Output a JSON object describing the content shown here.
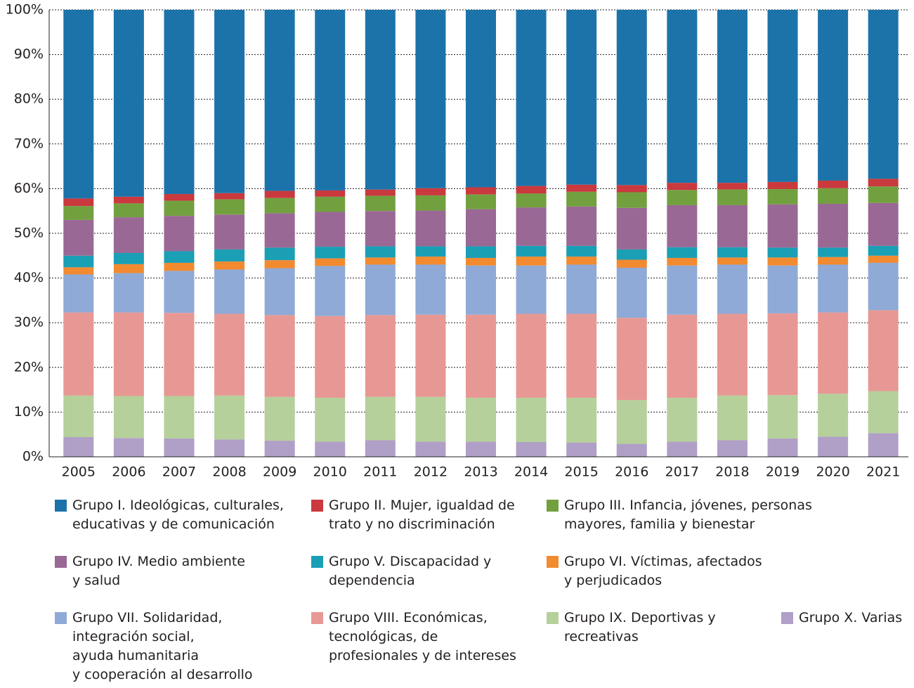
{
  "chart_data": {
    "type": "stacked_bar",
    "categories": [
      "2005",
      "2006",
      "2007",
      "2008",
      "2009",
      "2010",
      "2011",
      "2012",
      "2013",
      "2014",
      "2015",
      "2016",
      "2017",
      "2018",
      "2019",
      "2020",
      "2021"
    ],
    "ylim": [
      0,
      100
    ],
    "yticks": [
      {
        "value": 0,
        "label": "0%"
      },
      {
        "value": 10,
        "label": "10%"
      },
      {
        "value": 20,
        "label": "20%"
      },
      {
        "value": 30,
        "label": "30%"
      },
      {
        "value": 40,
        "label": "40%"
      },
      {
        "value": 50,
        "label": "50%"
      },
      {
        "value": 60,
        "label": "60%"
      },
      {
        "value": 70,
        "label": "70%"
      },
      {
        "value": 80,
        "label": "80%"
      },
      {
        "value": 90,
        "label": "90%"
      },
      {
        "value": 100,
        "label": "100%"
      }
    ],
    "grid": true,
    "series": [
      {
        "name": "Grupo I. Ideológicas, culturales,\neducativas y de comunicación",
        "color": "#1c73aa",
        "values": [
          42.2,
          41.8,
          41.2,
          41.0,
          40.5,
          40.4,
          40.2,
          39.9,
          39.7,
          39.4,
          39.1,
          39.2,
          38.7,
          38.7,
          38.5,
          38.2,
          37.8
        ]
      },
      {
        "name": "Grupo II. Mujer, igualdad de\ntrato y no discriminación",
        "color": "#c9393e",
        "values": [
          1.7,
          1.5,
          1.5,
          1.4,
          1.6,
          1.4,
          1.4,
          1.6,
          1.6,
          1.7,
          1.6,
          1.6,
          1.6,
          1.5,
          1.6,
          1.7,
          1.7
        ]
      },
      {
        "name": "Grupo III. Infancia, jóvenes, personas\nmayores, familia y bienestar",
        "color": "#72a03f",
        "values": [
          3.1,
          3.1,
          3.4,
          3.4,
          3.4,
          3.4,
          3.4,
          3.4,
          3.3,
          3.1,
          3.3,
          3.5,
          3.4,
          3.5,
          3.4,
          3.5,
          3.7
        ]
      },
      {
        "name": "Grupo IV. Medio ambiente\ny salud",
        "color": "#9a6895",
        "values": [
          8.0,
          8.0,
          7.9,
          7.8,
          7.7,
          7.8,
          7.9,
          8.0,
          8.3,
          8.6,
          8.8,
          9.3,
          9.4,
          9.4,
          9.7,
          9.8,
          9.6
        ]
      },
      {
        "name": "Grupo V. Discapacidad y\ndependencia",
        "color": "#1a9fb5",
        "values": [
          2.6,
          2.5,
          2.6,
          2.7,
          2.8,
          2.6,
          2.5,
          2.3,
          2.6,
          2.4,
          2.4,
          2.3,
          2.4,
          2.3,
          2.2,
          2.1,
          2.2
        ]
      },
      {
        "name": "Grupo VI. Víctimas, afectados\ny perjudicados",
        "color": "#f28a30",
        "values": [
          1.6,
          2.0,
          1.8,
          1.8,
          1.8,
          1.7,
          1.6,
          1.8,
          1.7,
          2.0,
          1.8,
          1.8,
          1.7,
          1.6,
          1.8,
          1.7,
          1.6
        ]
      },
      {
        "name": "Grupo VII. Solidaridad,\nintegración social,\nayuda humanitaria\ny cooperación al desarrollo",
        "color": "#8faad6",
        "values": [
          8.5,
          8.8,
          9.4,
          9.9,
          10.5,
          11.2,
          11.3,
          11.2,
          11.0,
          10.8,
          11.0,
          11.2,
          11.0,
          11.0,
          10.7,
          10.7,
          10.6
        ]
      },
      {
        "name": "Grupo VIII. Económicas,\ntecnológicas, de\nprofesionales y de intereses",
        "color": "#e79894",
        "values": [
          18.6,
          18.7,
          18.6,
          18.3,
          18.3,
          18.3,
          18.3,
          18.4,
          18.6,
          18.8,
          18.8,
          18.4,
          18.6,
          18.3,
          18.3,
          18.2,
          18.1
        ]
      },
      {
        "name": "Grupo IX. Deportivas y\nrecreativas",
        "color": "#b5d09a",
        "values": [
          9.3,
          9.4,
          9.5,
          9.8,
          9.8,
          9.8,
          9.7,
          10.0,
          9.8,
          9.9,
          10.0,
          9.8,
          9.8,
          10.0,
          9.7,
          9.6,
          9.4
        ]
      },
      {
        "name": "Grupo X. Varias",
        "color": "#b09fc7",
        "values": [
          4.4,
          4.2,
          4.1,
          3.9,
          3.6,
          3.4,
          3.7,
          3.4,
          3.4,
          3.3,
          3.2,
          2.9,
          3.4,
          3.7,
          4.1,
          4.5,
          5.3
        ]
      }
    ]
  }
}
